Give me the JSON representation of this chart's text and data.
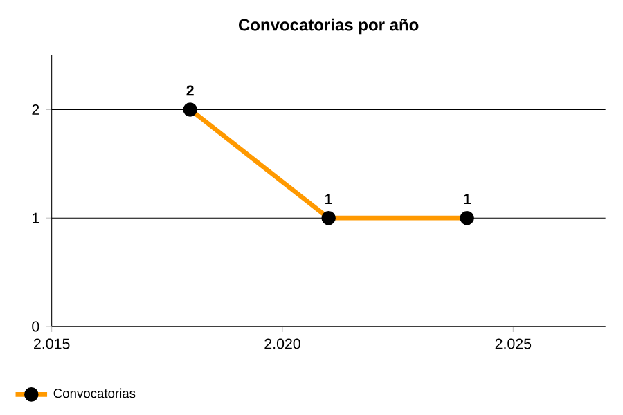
{
  "chart_data": {
    "type": "line",
    "title": "Convocatorias por año",
    "x": [
      2018,
      2021,
      2024
    ],
    "series": [
      {
        "name": "Convocatorias",
        "color": "#ff9900",
        "values": [
          2,
          1,
          1
        ]
      }
    ],
    "xlim": [
      2015,
      2027
    ],
    "xticks": [
      {
        "value": 2015,
        "label": "2.015"
      },
      {
        "value": 2020,
        "label": "2.020"
      },
      {
        "value": 2025,
        "label": "2.025"
      }
    ],
    "ylim": [
      0,
      2.5
    ],
    "yticks": [
      0,
      1,
      2
    ],
    "grid": "y",
    "legend": "bottom left",
    "marker": "circle",
    "data_labels": true
  }
}
